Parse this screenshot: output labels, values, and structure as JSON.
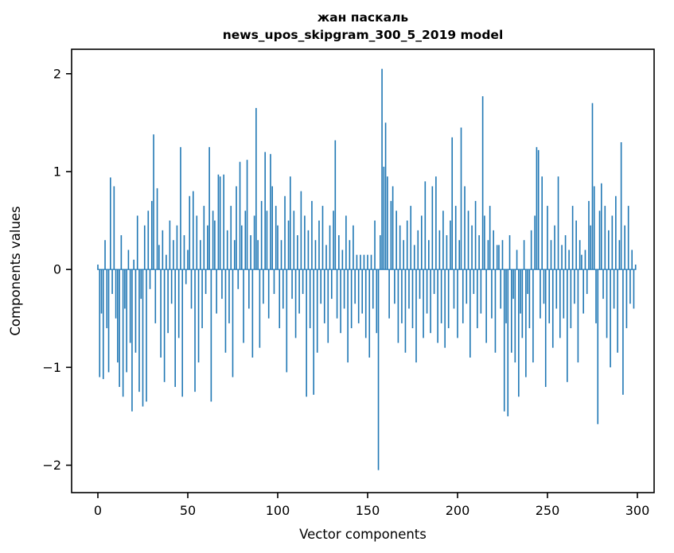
{
  "title": {
    "line1": "жан паскаль",
    "line2": "news_upos_skipgram_300_5_2019 model"
  },
  "axes": {
    "xlabel": "Vector components",
    "ylabel": "Components values"
  },
  "chart_data": {
    "type": "bar",
    "title": "жан паскаль — news_upos_skipgram_300_5_2019 model",
    "xlabel": "Vector components",
    "ylabel": "Components values",
    "legend": "none",
    "grid": false,
    "bar_color": "#1f77b4",
    "x_ticks": [
      0,
      50,
      100,
      150,
      200,
      250,
      300
    ],
    "y_ticks": [
      -2,
      -1,
      0,
      1,
      2
    ],
    "xlim": [
      -14.6,
      309.3
    ],
    "ylim": [
      -2.28,
      2.25
    ],
    "values": [
      0.05,
      -1.1,
      -0.45,
      -1.12,
      0.3,
      -0.6,
      -1.05,
      0.94,
      -0.25,
      0.85,
      -0.5,
      -0.95,
      -1.2,
      0.35,
      -1.3,
      -0.4,
      -1.05,
      0.2,
      -0.75,
      -1.45,
      0.1,
      -0.85,
      0.55,
      -1.25,
      -0.3,
      -1.4,
      0.45,
      -1.35,
      0.6,
      -0.2,
      0.7,
      1.38,
      -0.55,
      0.83,
      0.25,
      -0.9,
      0.4,
      -1.15,
      0.15,
      -0.65,
      0.5,
      -0.35,
      0.3,
      -1.2,
      0.45,
      -0.7,
      1.25,
      -1.3,
      0.35,
      -0.15,
      0.2,
      0.75,
      -0.4,
      0.8,
      -1.25,
      0.55,
      -0.95,
      0.3,
      -0.6,
      0.65,
      -0.25,
      0.45,
      1.25,
      -1.35,
      0.6,
      0.5,
      -0.45,
      0.97,
      0.95,
      -0.3,
      0.97,
      -0.85,
      0.4,
      -0.55,
      0.65,
      -1.1,
      0.3,
      0.85,
      -0.2,
      1.1,
      0.45,
      -0.75,
      0.6,
      1.12,
      -0.4,
      0.35,
      -0.9,
      0.55,
      1.65,
      0.3,
      -0.8,
      0.7,
      -0.35,
      1.2,
      0.6,
      -0.5,
      1.18,
      0.85,
      -0.25,
      0.65,
      0.45,
      -0.6,
      0.3,
      -0.4,
      0.75,
      -1.05,
      0.5,
      0.95,
      -0.3,
      0.6,
      -0.7,
      0.35,
      -0.45,
      0.8,
      -0.25,
      0.55,
      -1.3,
      0.4,
      -0.6,
      0.7,
      -1.28,
      0.3,
      -0.85,
      0.5,
      -0.35,
      0.65,
      -0.55,
      0.25,
      -0.75,
      0.45,
      -0.3,
      0.6,
      1.32,
      -0.5,
      0.35,
      -0.65,
      0.2,
      -0.4,
      0.55,
      -0.95,
      0.3,
      -0.6,
      0.45,
      -0.35,
      0.15,
      -0.55,
      0.15,
      -0.45,
      0.15,
      -0.7,
      0.15,
      -0.9,
      0.15,
      -0.4,
      0.5,
      -0.65,
      -2.05,
      0.35,
      2.05,
      1.05,
      1.5,
      0.95,
      -0.5,
      0.7,
      0.85,
      -0.35,
      0.6,
      -0.75,
      0.45,
      -0.55,
      0.3,
      -0.85,
      0.5,
      -0.4,
      0.65,
      -0.6,
      0.25,
      -0.95,
      0.4,
      -0.3,
      0.55,
      -0.7,
      0.9,
      -0.45,
      0.3,
      -0.65,
      0.85,
      -0.25,
      0.95,
      -0.75,
      0.4,
      -0.55,
      0.6,
      -0.8,
      0.35,
      -0.6,
      0.5,
      1.35,
      -0.4,
      0.65,
      -0.7,
      0.3,
      1.45,
      -0.55,
      0.85,
      -0.35,
      0.6,
      -0.9,
      0.45,
      -0.25,
      0.7,
      -0.6,
      0.35,
      -0.45,
      1.77,
      0.55,
      -0.75,
      0.3,
      0.65,
      -0.5,
      0.4,
      -0.85,
      0.25,
      0.25,
      -0.4,
      0.3,
      -1.45,
      -0.55,
      -1.5,
      0.35,
      -0.85,
      -0.3,
      -0.95,
      0.2,
      -1.3,
      -0.45,
      -0.7,
      0.3,
      -1.1,
      -0.25,
      -0.6,
      0.4,
      -0.95,
      0.55,
      1.25,
      1.22,
      -0.5,
      0.95,
      -0.35,
      -1.2,
      0.65,
      -0.55,
      0.3,
      -0.8,
      0.45,
      -0.4,
      0.95,
      -0.7,
      0.25,
      -0.5,
      0.35,
      -1.15,
      0.2,
      -0.6,
      0.65,
      -0.35,
      0.5,
      -0.95,
      0.3,
      0.15,
      -0.45,
      0.2,
      -0.25,
      0.7,
      0.45,
      1.7,
      0.85,
      -0.55,
      -1.58,
      0.6,
      0.88,
      -0.3,
      0.65,
      -0.7,
      0.4,
      -1.0,
      0.55,
      -0.4,
      0.75,
      -0.85,
      0.3,
      1.3,
      -1.28,
      0.45,
      -0.6,
      0.65,
      -0.35,
      0.2,
      -0.4,
      0.05
    ]
  }
}
